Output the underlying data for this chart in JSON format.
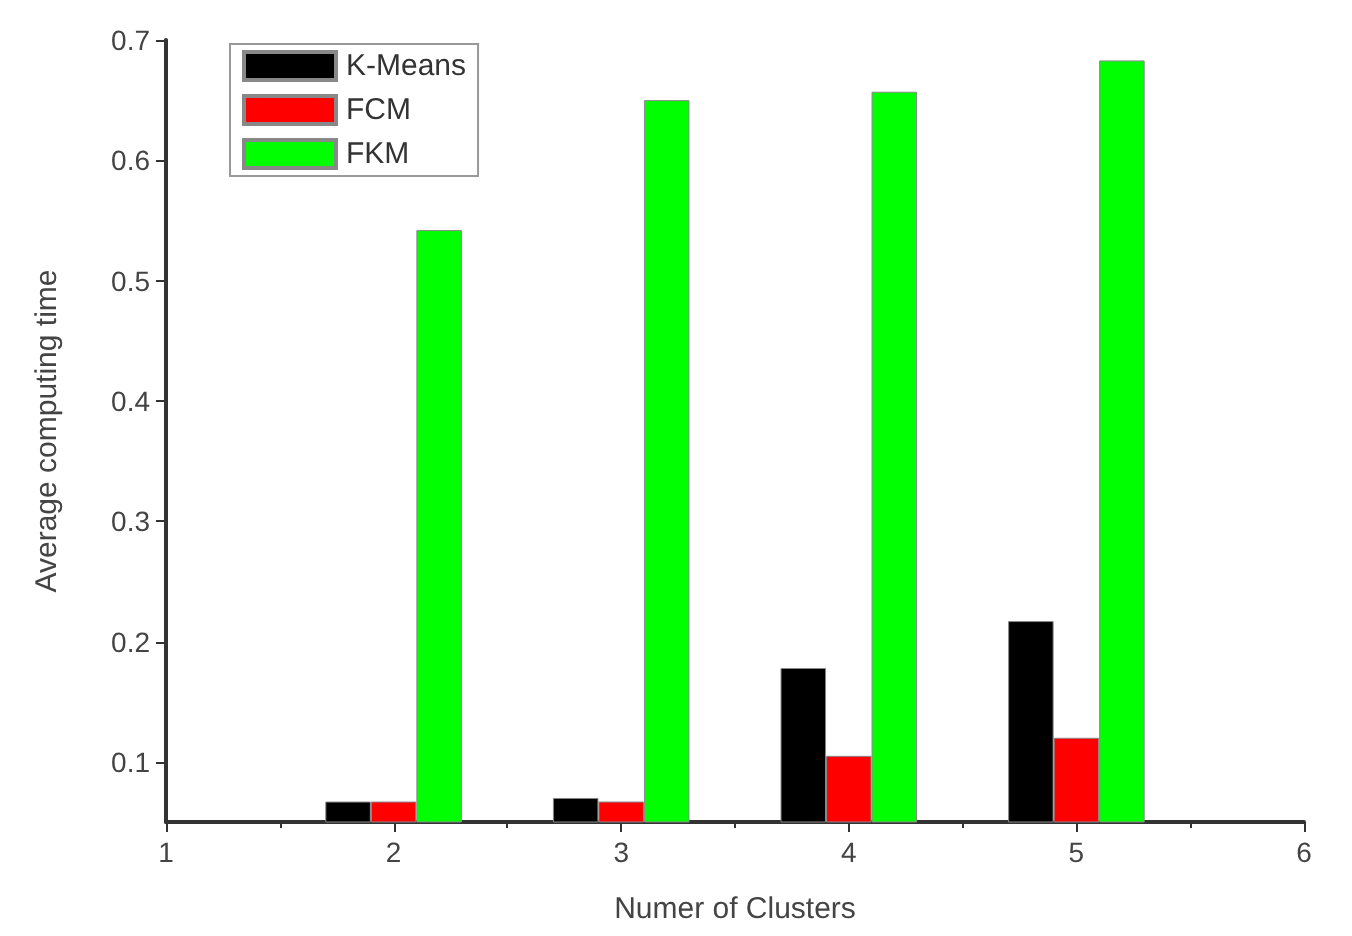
{
  "chart_data": {
    "type": "bar",
    "xlabel": "Numer of Clusters",
    "ylabel": "Average computing time",
    "x": [
      2,
      3,
      4,
      5
    ],
    "series": [
      {
        "name": "K-Means",
        "color": "#000000",
        "values": [
          0.067,
          0.07,
          0.178,
          0.217
        ]
      },
      {
        "name": "FCM",
        "color": "#ff0000",
        "values": [
          0.067,
          0.067,
          0.105,
          0.12
        ]
      },
      {
        "name": "FKM",
        "color": "#00ff00",
        "values": [
          0.542,
          0.65,
          0.657,
          0.683
        ]
      }
    ],
    "xlim": [
      1,
      6
    ],
    "xticks": [
      1,
      2,
      3,
      4,
      5,
      6
    ],
    "ylim": [
      0.05,
      0.7
    ],
    "yticks": [
      0.1,
      0.2,
      0.3,
      0.4,
      0.5,
      0.6,
      0.7
    ],
    "grid": false,
    "legend": "top left"
  }
}
